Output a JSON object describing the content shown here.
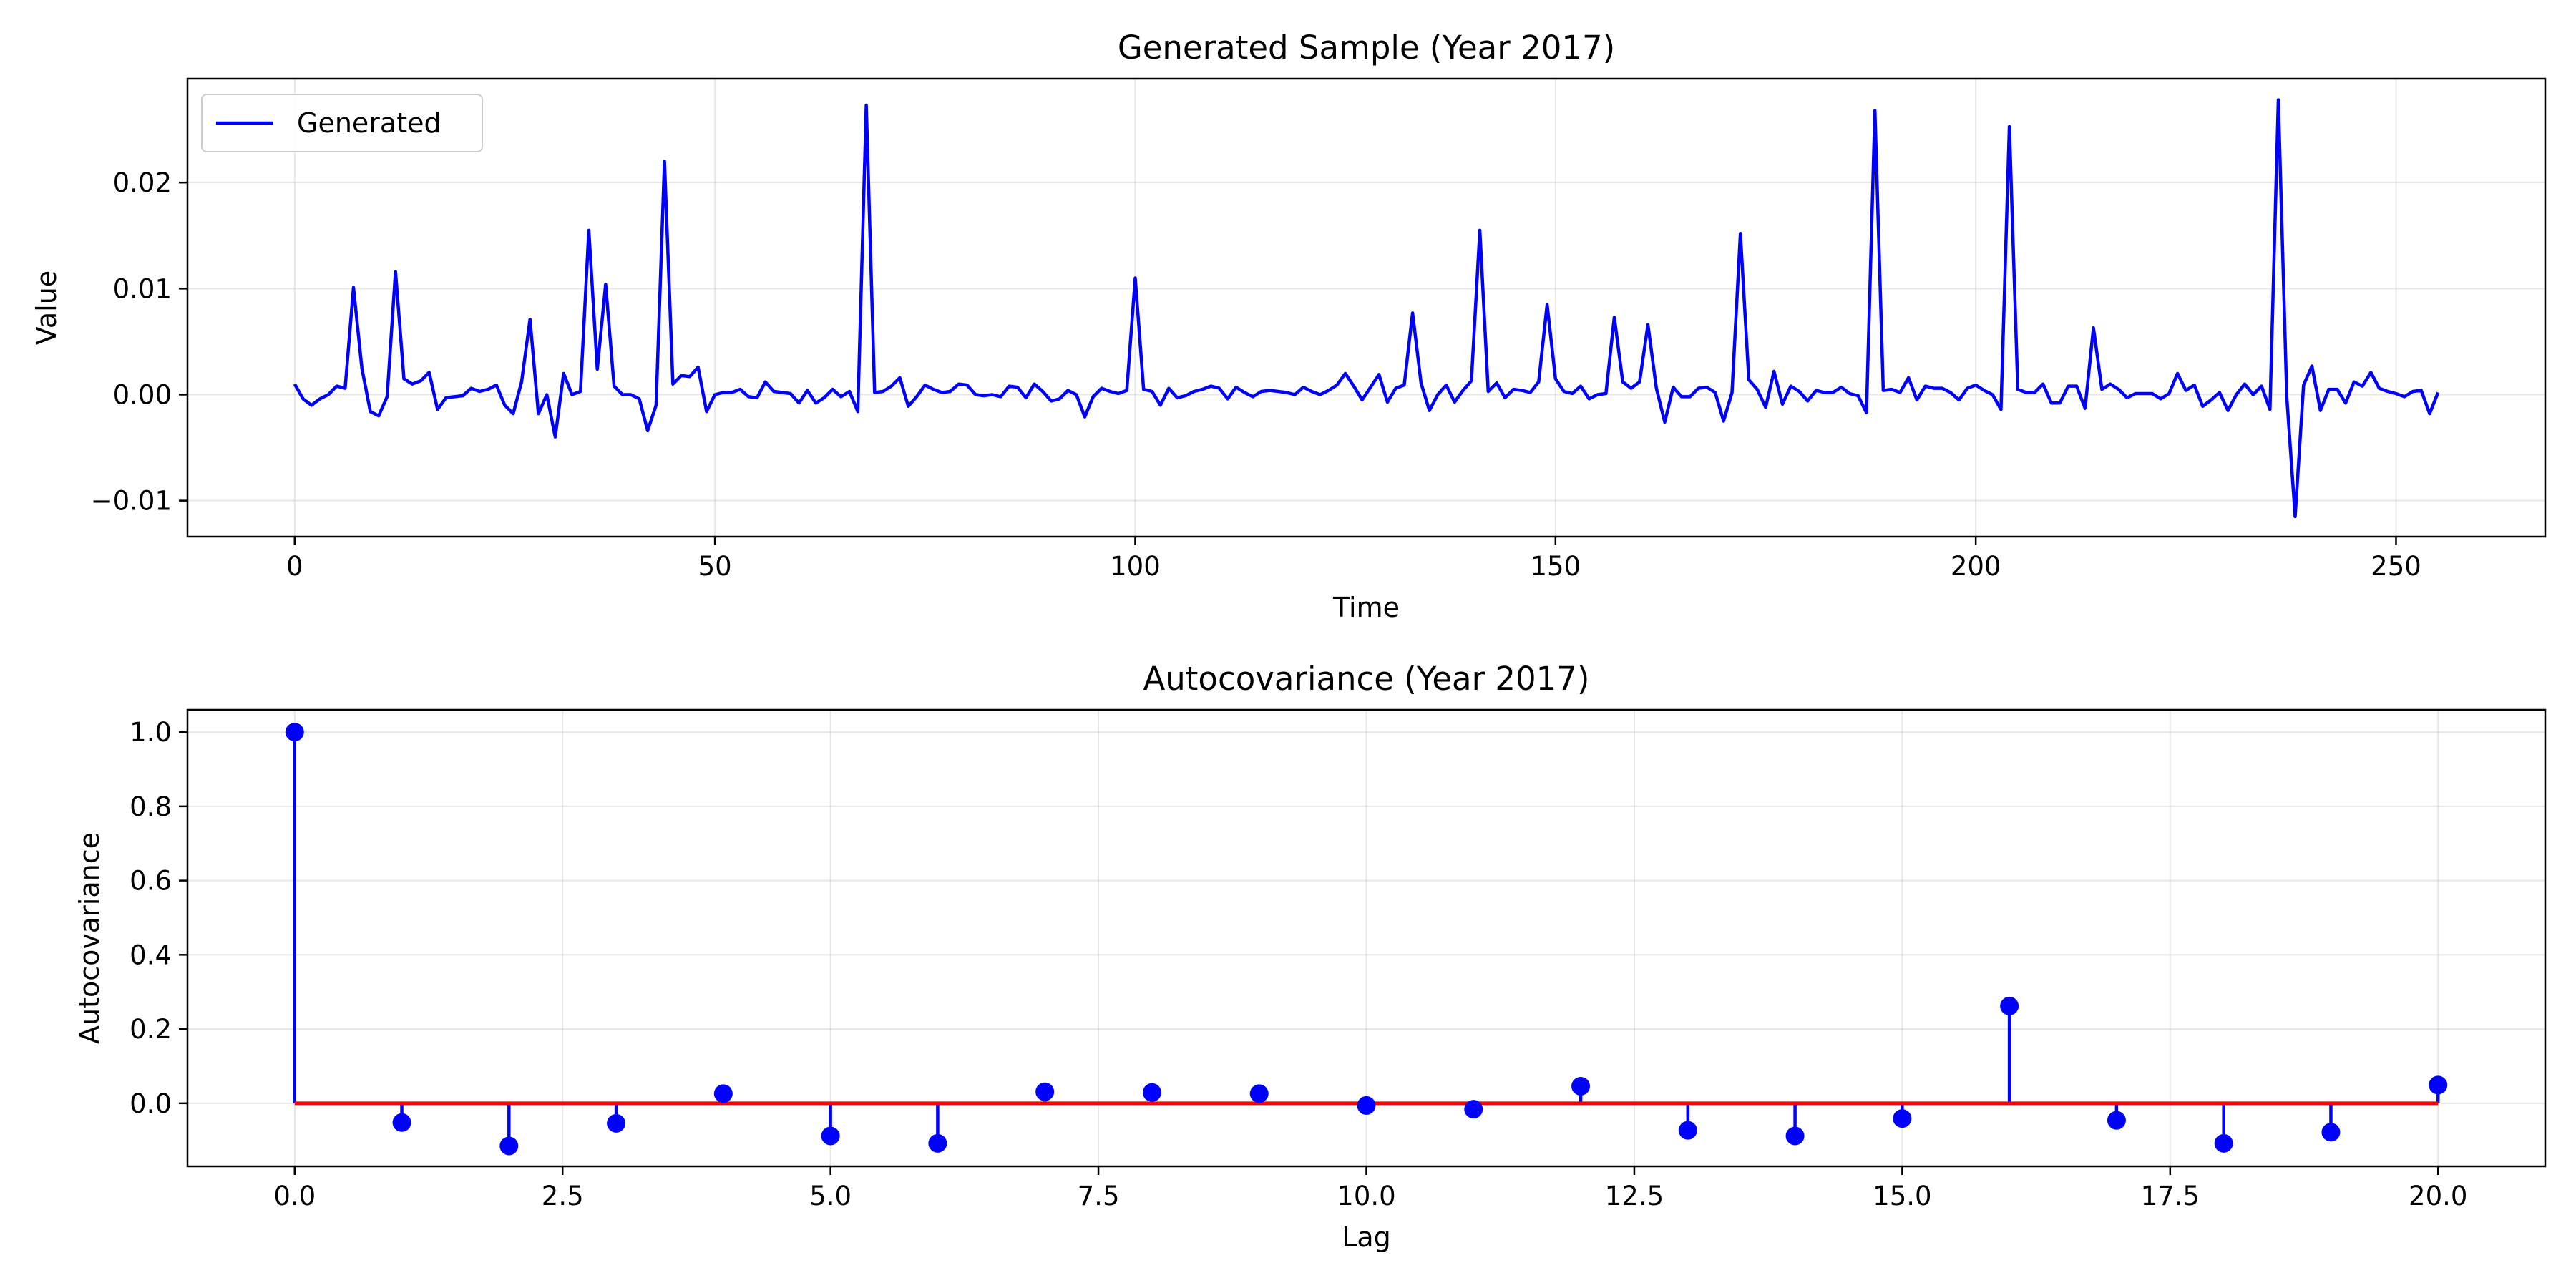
{
  "chart_data": [
    {
      "type": "line",
      "title": "Generated Sample (Year 2017)",
      "xlabel": "Time",
      "ylabel": "Value",
      "xlim": [
        -12.75,
        267.75
      ],
      "ylim": [
        -0.0134,
        0.0298
      ],
      "xticks": [
        0,
        50,
        100,
        150,
        200,
        250
      ],
      "xtick_labels": [
        "0",
        "50",
        "100",
        "150",
        "200",
        "250"
      ],
      "yticks": [
        -0.01,
        0.0,
        0.01,
        0.02
      ],
      "ytick_labels": [
        "−0.01",
        "0.00",
        "0.01",
        "0.02"
      ],
      "grid": true,
      "legend": "upper-left",
      "series": [
        {
          "name": "Generated",
          "color": "#0000ff",
          "x_start": 0,
          "x_step": 1,
          "values": [
            0.001,
            -0.0004,
            -0.001,
            -0.0004,
            0.0,
            0.0008,
            0.0006,
            0.0101,
            0.0025,
            -0.0016,
            -0.002,
            -0.0002,
            0.0116,
            0.0015,
            0.001,
            0.0013,
            0.0021,
            -0.0014,
            -0.0003,
            -0.0002,
            -0.0001,
            0.0006,
            0.0003,
            0.0005,
            0.0009,
            -0.001,
            -0.0018,
            0.0012,
            0.0071,
            -0.0018,
            0.0,
            -0.004,
            0.002,
            0.0,
            0.0003,
            0.0155,
            0.0024,
            0.0104,
            0.0008,
            0.0,
            0.0,
            -0.0004,
            -0.0034,
            -0.001,
            0.022,
            0.001,
            0.0018,
            0.0017,
            0.0026,
            -0.0016,
            0.0,
            0.0002,
            0.0002,
            0.0005,
            -0.0002,
            -0.0003,
            0.0012,
            0.0003,
            0.0002,
            0.0001,
            -0.0008,
            0.0004,
            -0.0008,
            -0.0003,
            0.0005,
            -0.0002,
            0.0003,
            -0.0016,
            0.0273,
            0.0002,
            0.0003,
            0.0008,
            0.0016,
            -0.0011,
            -0.0002,
            0.0009,
            0.0005,
            0.0002,
            0.0003,
            0.001,
            0.0009,
            0.0,
            -0.0001,
            0.0,
            -0.0002,
            0.0008,
            0.0007,
            -0.0003,
            0.001,
            0.0003,
            -0.0006,
            -0.0004,
            0.0004,
            0.0,
            -0.0021,
            -0.0002,
            0.0006,
            0.0003,
            0.0001,
            0.0004,
            0.011,
            0.0005,
            0.0003,
            -0.001,
            0.0006,
            -0.0003,
            -0.0001,
            0.0003,
            0.0005,
            0.0008,
            0.0006,
            -0.0004,
            0.0007,
            0.0002,
            -0.0002,
            0.0003,
            0.0004,
            0.0003,
            0.0002,
            0.0,
            0.0007,
            0.0003,
            0.0,
            0.0004,
            0.0009,
            0.002,
            0.0008,
            -0.0005,
            0.0007,
            0.0019,
            -0.0007,
            0.0006,
            0.0009,
            0.0077,
            0.0011,
            -0.0015,
            0.0,
            0.0009,
            -0.0007,
            0.0004,
            0.0013,
            0.0155,
            0.0003,
            0.0011,
            -0.0003,
            0.0005,
            0.0004,
            0.0002,
            0.0012,
            0.0085,
            0.0015,
            0.0003,
            0.0001,
            0.0008,
            -0.0004,
            0.0,
            0.0001,
            0.0073,
            0.0012,
            0.0006,
            0.0012,
            0.0066,
            0.0006,
            -0.0026,
            0.0007,
            -0.0002,
            -0.0002,
            0.0006,
            0.0007,
            0.0002,
            -0.0025,
            0.0002,
            0.0152,
            0.0014,
            0.0005,
            -0.0012,
            0.0022,
            -0.0009,
            0.0008,
            0.0003,
            -0.0006,
            0.0004,
            0.0002,
            0.0002,
            0.0007,
            0.0001,
            -0.0001,
            -0.0017,
            0.0268,
            0.0004,
            0.0005,
            0.0002,
            0.0016,
            -0.0005,
            0.0008,
            0.0006,
            0.0006,
            0.0002,
            -0.0005,
            0.0006,
            0.0009,
            0.0004,
            0.0,
            -0.0014,
            0.0253,
            0.0005,
            0.0002,
            0.0002,
            0.001,
            -0.0008,
            -0.0008,
            0.0008,
            0.0008,
            -0.0013,
            0.0063,
            0.0005,
            0.001,
            0.0005,
            -0.0003,
            0.0001,
            0.0001,
            0.0001,
            -0.0004,
            0.0001,
            0.002,
            0.0004,
            0.0009,
            -0.0011,
            -0.0005,
            0.0002,
            -0.0015,
            0.0,
            0.001,
            0.0,
            0.0008,
            -0.0014,
            0.0278,
            -0.0002,
            -0.0115,
            0.0009,
            0.0027,
            -0.0015,
            0.0005,
            0.0005,
            -0.0008,
            0.0012,
            0.0008,
            0.0021,
            0.0006,
            0.0003,
            0.0001,
            -0.0002,
            0.0003,
            0.0004,
            -0.0018,
            0.0002
          ]
        }
      ]
    },
    {
      "type": "stem",
      "title": "Autocovariance (Year 2017)",
      "xlabel": "Lag",
      "ylabel": "Autocovariance",
      "xlim": [
        -1.0,
        21.0
      ],
      "ylim": [
        -0.17,
        1.06
      ],
      "xticks": [
        0,
        2.5,
        5,
        7.5,
        10,
        12.5,
        15,
        17.5,
        20
      ],
      "xtick_labels": [
        "0.0",
        "2.5",
        "5.0",
        "7.5",
        "10.0",
        "12.5",
        "15.0",
        "17.5",
        "20.0"
      ],
      "yticks": [
        0,
        0.2,
        0.4,
        0.6,
        0.8,
        1.0
      ],
      "ytick_labels": [
        "0.0",
        "0.2",
        "0.4",
        "0.6",
        "0.8",
        "1.0"
      ],
      "grid": true,
      "stem_color": "#0000ff",
      "baseline_color": "#ff0000",
      "lags": [
        0,
        1,
        2,
        3,
        4,
        5,
        6,
        7,
        8,
        9,
        10,
        11,
        12,
        13,
        14,
        15,
        16,
        17,
        18,
        19,
        20
      ],
      "values": [
        1.0,
        -0.052,
        -0.115,
        -0.054,
        0.026,
        -0.088,
        -0.108,
        0.031,
        0.029,
        0.026,
        -0.006,
        -0.016,
        0.046,
        -0.073,
        -0.088,
        -0.041,
        0.262,
        -0.046,
        -0.108,
        -0.078,
        0.049
      ]
    }
  ]
}
